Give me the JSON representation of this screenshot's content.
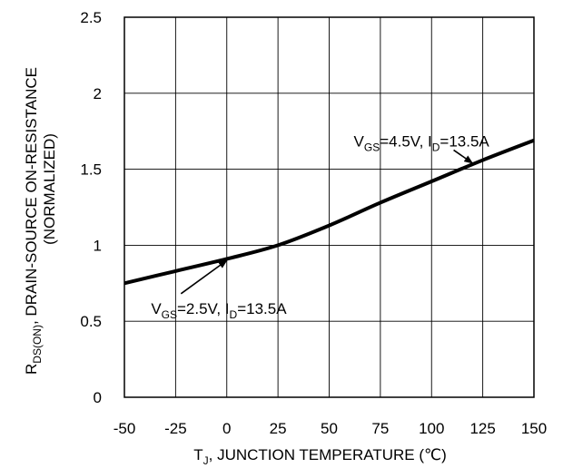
{
  "chart_data": {
    "type": "line",
    "xlabel": {
      "prefix": "T",
      "sub": "J",
      "rest": ", JUNCTION TEMPERATURE (℃)"
    },
    "ylabel": {
      "line1_prefix": "R",
      "line1_sub": "DS(ON)",
      "line1_rest": ", DRAIN-SOURCE ON-RESISTANCE",
      "line2": "(NORMALIZED)"
    },
    "xlim": [
      -50,
      150
    ],
    "ylim": [
      0,
      2.5
    ],
    "xticks": [
      "-50",
      "-25",
      "0",
      "25",
      "50",
      "75",
      "100",
      "125",
      "150"
    ],
    "yticks": [
      "0",
      "0.5",
      "1",
      "1.5",
      "2",
      "2.5"
    ],
    "grid": true,
    "series": [
      {
        "x": [
          -50,
          -25,
          0,
          25,
          50,
          75,
          100,
          125,
          150
        ],
        "y": [
          0.75,
          0.83,
          0.91,
          1.0,
          1.13,
          1.28,
          1.42,
          1.56,
          1.69
        ]
      }
    ],
    "annotations": [
      {
        "parts": [
          {
            "t": "V",
            "sub": false
          },
          {
            "t": "GS",
            "sub": true
          },
          {
            "t": "=4.5V, I",
            "sub": false
          },
          {
            "t": "D",
            "sub": true
          },
          {
            "t": "=13.5A",
            "sub": false
          }
        ],
        "text_x": 62,
        "text_y": 1.65,
        "arrow_to": [
          120,
          1.54
        ]
      },
      {
        "parts": [
          {
            "t": "V",
            "sub": false
          },
          {
            "t": "GS",
            "sub": true
          },
          {
            "t": "=2.5V, I",
            "sub": false
          },
          {
            "t": "D",
            "sub": true
          },
          {
            "t": "=13.5A",
            "sub": false
          }
        ],
        "text_x": -37,
        "text_y": 0.55,
        "arrow_to": [
          0,
          0.9
        ]
      }
    ]
  }
}
